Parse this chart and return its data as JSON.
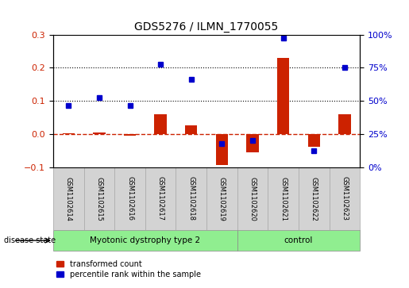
{
  "title": "GDS5276 / ILMN_1770055",
  "samples": [
    "GSM1102614",
    "GSM1102615",
    "GSM1102616",
    "GSM1102617",
    "GSM1102618",
    "GSM1102619",
    "GSM1102620",
    "GSM1102621",
    "GSM1102622",
    "GSM1102623"
  ],
  "transformed_count": [
    0.002,
    0.005,
    -0.005,
    0.06,
    0.025,
    -0.095,
    -0.055,
    0.23,
    -0.04,
    0.06
  ],
  "percentile_rank": [
    0.085,
    0.11,
    0.085,
    0.21,
    0.165,
    -0.03,
    -0.02,
    0.29,
    -0.05,
    0.2
  ],
  "disease_groups": [
    {
      "label": "Myotonic dystrophy type 2",
      "start": 0,
      "end": 5,
      "color": "#90ee90"
    },
    {
      "label": "control",
      "start": 6,
      "end": 9,
      "color": "#90ee90"
    }
  ],
  "ylim_left": [
    -0.1,
    0.3
  ],
  "ylim_right": [
    0,
    100
  ],
  "yticks_left": [
    -0.1,
    0.0,
    0.1,
    0.2,
    0.3
  ],
  "yticks_right": [
    0,
    25,
    50,
    75,
    100
  ],
  "hlines": [
    0.1,
    0.2
  ],
  "bar_color": "#cc2200",
  "dot_color": "#0000cc",
  "zero_line_color": "#cc2200",
  "label_bg_color": "#d3d3d3",
  "legend_labels": [
    "transformed count",
    "percentile rank within the sample"
  ]
}
